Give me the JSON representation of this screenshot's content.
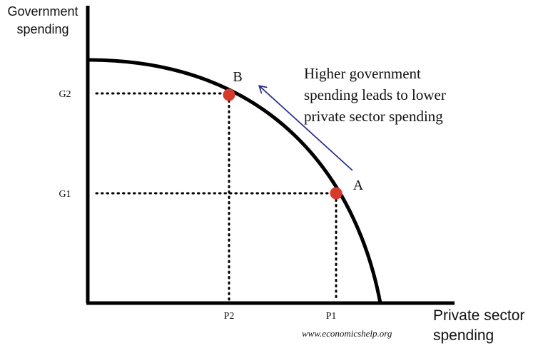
{
  "diagram": {
    "y_axis_label_line1": "Government",
    "y_axis_label_line2": "spending",
    "x_axis_label_line1": "Private sector",
    "x_axis_label_line2": "spending",
    "ticks": {
      "g2": "G2",
      "g1": "G1",
      "p2": "P2",
      "p1": "P1"
    },
    "points": {
      "b": "B",
      "a": "A"
    },
    "annotation": {
      "line1": "Higher government",
      "line2": "spending leads to lower",
      "line3": "private sector spending"
    },
    "source": "www.economicshelp.org",
    "colors": {
      "axis": "#000000",
      "curve": "#000000",
      "point": "#d63a2b",
      "arrow": "#2a2f86"
    }
  }
}
